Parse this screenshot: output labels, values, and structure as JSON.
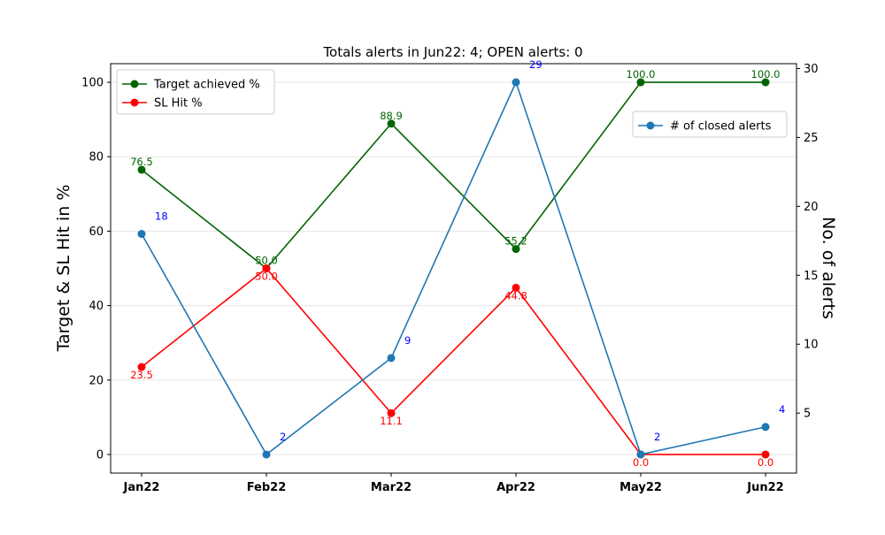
{
  "chart_data": {
    "type": "line",
    "title": "Totals alerts in Jun22: 4; OPEN alerts: 0",
    "categories": [
      "Jan22",
      "Feb22",
      "Mar22",
      "Apr22",
      "May22",
      "Jun22"
    ],
    "y_left": {
      "label": "Target & SL Hit in %",
      "ylim": [
        -5,
        105
      ],
      "ticks": [
        0,
        20,
        40,
        60,
        80,
        100
      ]
    },
    "y_right": {
      "label": "No. of alerts",
      "ylim": [
        0.65,
        30.35
      ],
      "ticks": [
        5,
        10,
        15,
        20,
        25,
        30
      ]
    },
    "grid": "horizontal",
    "series": [
      {
        "name": "Target achieved %",
        "axis": "left",
        "color": "#006400",
        "values": [
          76.5,
          50.0,
          88.9,
          55.2,
          100.0,
          100.0
        ],
        "labels": [
          "76.5",
          "50.0",
          "88.9",
          "55.2",
          "100.0",
          "100.0"
        ],
        "label_position": "above"
      },
      {
        "name": "SL Hit %",
        "axis": "left",
        "color": "#ff0000",
        "values": [
          23.5,
          50.0,
          11.1,
          44.8,
          0.0,
          0.0
        ],
        "labels": [
          "23.5",
          "50.0",
          "11.1",
          "44.8",
          "0.0",
          "0.0"
        ],
        "label_position": "below"
      },
      {
        "name": "# of closed alerts",
        "axis": "right",
        "color": "#1f77b4",
        "values": [
          18,
          2,
          9,
          29,
          2,
          4
        ],
        "labels": [
          "18",
          "2",
          "9",
          "29",
          "2",
          "4"
        ],
        "label_color": "#0000ff",
        "label_position": "upper-right"
      }
    ],
    "legends": [
      {
        "placement": "top-left",
        "entries": [
          "Target achieved %",
          "SL Hit %"
        ]
      },
      {
        "placement": "upper-right",
        "entries": [
          "# of closed alerts"
        ]
      }
    ]
  }
}
